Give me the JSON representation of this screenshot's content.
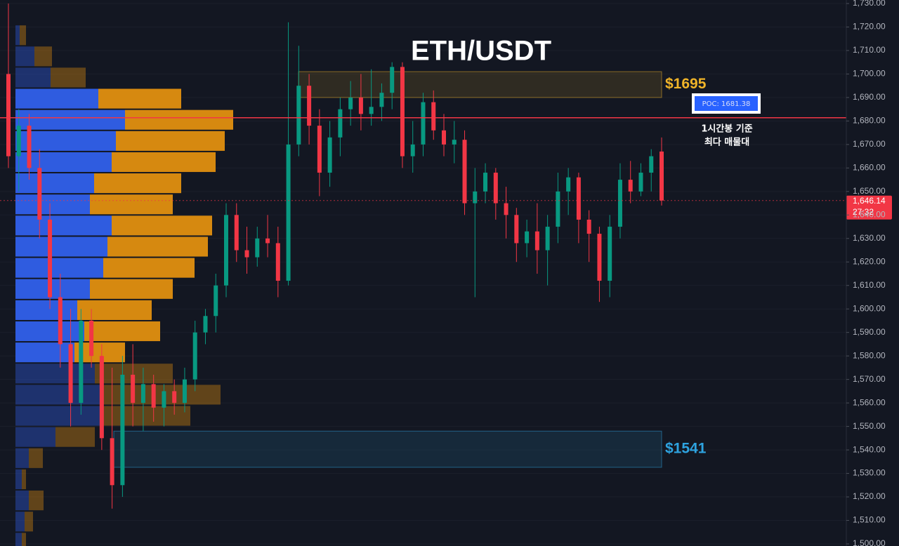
{
  "chart_data": {
    "type": "candlestick",
    "title": "ETH/USDT",
    "ylim": [
      1500,
      1730
    ],
    "yticks": [
      {
        "value": 1500,
        "label": "1,500.00"
      },
      {
        "value": 1510,
        "label": "1,510.00"
      },
      {
        "value": 1520,
        "label": "1,520.00"
      },
      {
        "value": 1530,
        "label": "1,530.00"
      },
      {
        "value": 1540,
        "label": "1,540.00"
      },
      {
        "value": 1550,
        "label": "1,550.00"
      },
      {
        "value": 1560,
        "label": "1,560.00"
      },
      {
        "value": 1570,
        "label": "1,570.00"
      },
      {
        "value": 1580,
        "label": "1,580.00"
      },
      {
        "value": 1590,
        "label": "1,590.00"
      },
      {
        "value": 1600,
        "label": "1,600.00"
      },
      {
        "value": 1610,
        "label": "1,610.00"
      },
      {
        "value": 1620,
        "label": "1,620.00"
      },
      {
        "value": 1630,
        "label": "1,630.00"
      },
      {
        "value": 1640,
        "label": "1,640.00"
      },
      {
        "value": 1650,
        "label": "1,650.00"
      },
      {
        "value": 1660,
        "label": "1,660.00"
      },
      {
        "value": 1670,
        "label": "1,670.00"
      },
      {
        "value": 1680,
        "label": "1,680.00"
      },
      {
        "value": 1690,
        "label": "1,690.00"
      },
      {
        "value": 1700,
        "label": "1,700.00"
      },
      {
        "value": 1710,
        "label": "1,710.00"
      },
      {
        "value": 1720,
        "label": "1,720.00"
      },
      {
        "value": 1730,
        "label": "1,730.00"
      }
    ],
    "grid": true,
    "up_color": "#089981",
    "down_color": "#f23645",
    "open": [
      1700,
      1665,
      1678,
      1660,
      1638,
      1605,
      1585,
      1560,
      1595,
      1580,
      1545,
      1525,
      1572,
      1560,
      1568,
      1558,
      1565,
      1560,
      1570,
      1590,
      1597,
      1610,
      1640,
      1625,
      1622,
      1630,
      1628,
      1612,
      1670,
      1695,
      1678,
      1658,
      1673,
      1685,
      1690,
      1683,
      1686,
      1692,
      1703,
      1665,
      1670,
      1688,
      1676,
      1670,
      1672,
      1645,
      1650,
      1658,
      1645,
      1640,
      1628,
      1633,
      1625,
      1635,
      1650,
      1656,
      1638,
      1632,
      1612,
      1635,
      1655,
      1650,
      1658,
      1667
    ],
    "high": [
      1730,
      1685,
      1683,
      1668,
      1645,
      1615,
      1600,
      1600,
      1600,
      1585,
      1575,
      1580,
      1585,
      1575,
      1572,
      1568,
      1570,
      1575,
      1595,
      1600,
      1615,
      1645,
      1645,
      1635,
      1635,
      1640,
      1635,
      1722,
      1712,
      1700,
      1685,
      1680,
      1690,
      1697,
      1700,
      1702,
      1696,
      1705,
      1705,
      1680,
      1692,
      1693,
      1683,
      1680,
      1676,
      1660,
      1662,
      1660,
      1652,
      1643,
      1638,
      1645,
      1640,
      1658,
      1660,
      1658,
      1642,
      1635,
      1640,
      1662,
      1663,
      1662,
      1668,
      1673
    ],
    "low": [
      1660,
      1650,
      1655,
      1630,
      1600,
      1575,
      1550,
      1555,
      1575,
      1540,
      1515,
      1520,
      1550,
      1548,
      1552,
      1550,
      1555,
      1556,
      1565,
      1585,
      1590,
      1605,
      1620,
      1615,
      1618,
      1622,
      1605,
      1610,
      1665,
      1670,
      1648,
      1652,
      1665,
      1678,
      1676,
      1678,
      1680,
      1685,
      1660,
      1658,
      1665,
      1672,
      1665,
      1662,
      1640,
      1605,
      1645,
      1638,
      1630,
      1620,
      1622,
      1615,
      1610,
      1628,
      1640,
      1628,
      1620,
      1603,
      1605,
      1630,
      1645,
      1648,
      1650,
      1644
    ],
    "close": [
      1665,
      1678,
      1660,
      1638,
      1605,
      1585,
      1560,
      1595,
      1580,
      1545,
      1525,
      1572,
      1560,
      1568,
      1558,
      1565,
      1560,
      1570,
      1590,
      1597,
      1610,
      1640,
      1625,
      1622,
      1630,
      1628,
      1612,
      1670,
      1695,
      1678,
      1658,
      1673,
      1685,
      1690,
      1683,
      1686,
      1692,
      1703,
      1665,
      1670,
      1688,
      1676,
      1670,
      1672,
      1645,
      1650,
      1658,
      1645,
      1640,
      1628,
      1633,
      1625,
      1635,
      1650,
      1656,
      1638,
      1632,
      1612,
      1635,
      1655,
      1650,
      1658,
      1665,
      1646.14
    ],
    "volume_profile": {
      "bins": [
        1721,
        1712,
        1703,
        1694,
        1685,
        1676,
        1667,
        1658,
        1649,
        1640,
        1631,
        1622,
        1613,
        1604,
        1595,
        1586,
        1577,
        1568,
        1559,
        1550,
        1541,
        1532,
        1523,
        1514,
        1505,
        1496
      ],
      "value_area": {
        "low": 1577,
        "high": 1694
      },
      "series": [
        {
          "color": "#2f5ce0",
          "values": [
            6,
            27,
            50,
            118,
            156,
            143,
            137,
            112,
            106,
            137,
            131,
            125,
            106,
            88,
            98,
            84,
            113,
            125,
            125,
            57,
            19,
            9,
            19,
            13,
            9
          ]
        },
        {
          "color": "#d68910",
          "values": [
            9,
            25,
            50,
            118,
            154,
            155,
            148,
            124,
            118,
            143,
            143,
            130,
            118,
            106,
            108,
            72,
            111,
            167,
            124,
            56,
            20,
            6,
            21,
            12,
            6
          ]
        }
      ]
    },
    "zones": [
      {
        "label": "$1695",
        "low": 1690,
        "high": 1701,
        "color": "#f0b429"
      },
      {
        "label": "$1541",
        "low": 1532.6,
        "high": 1548,
        "color": "#2ea3e0"
      }
    ],
    "poc": {
      "value": 1681.38,
      "label": "POC: 1681.38",
      "note": [
        "1시간봉 기준",
        "최다 매물대"
      ],
      "color": "#f23645"
    },
    "last_price": {
      "value": 1646.14,
      "label": "1,646.14",
      "countdown": "27:32"
    }
  }
}
